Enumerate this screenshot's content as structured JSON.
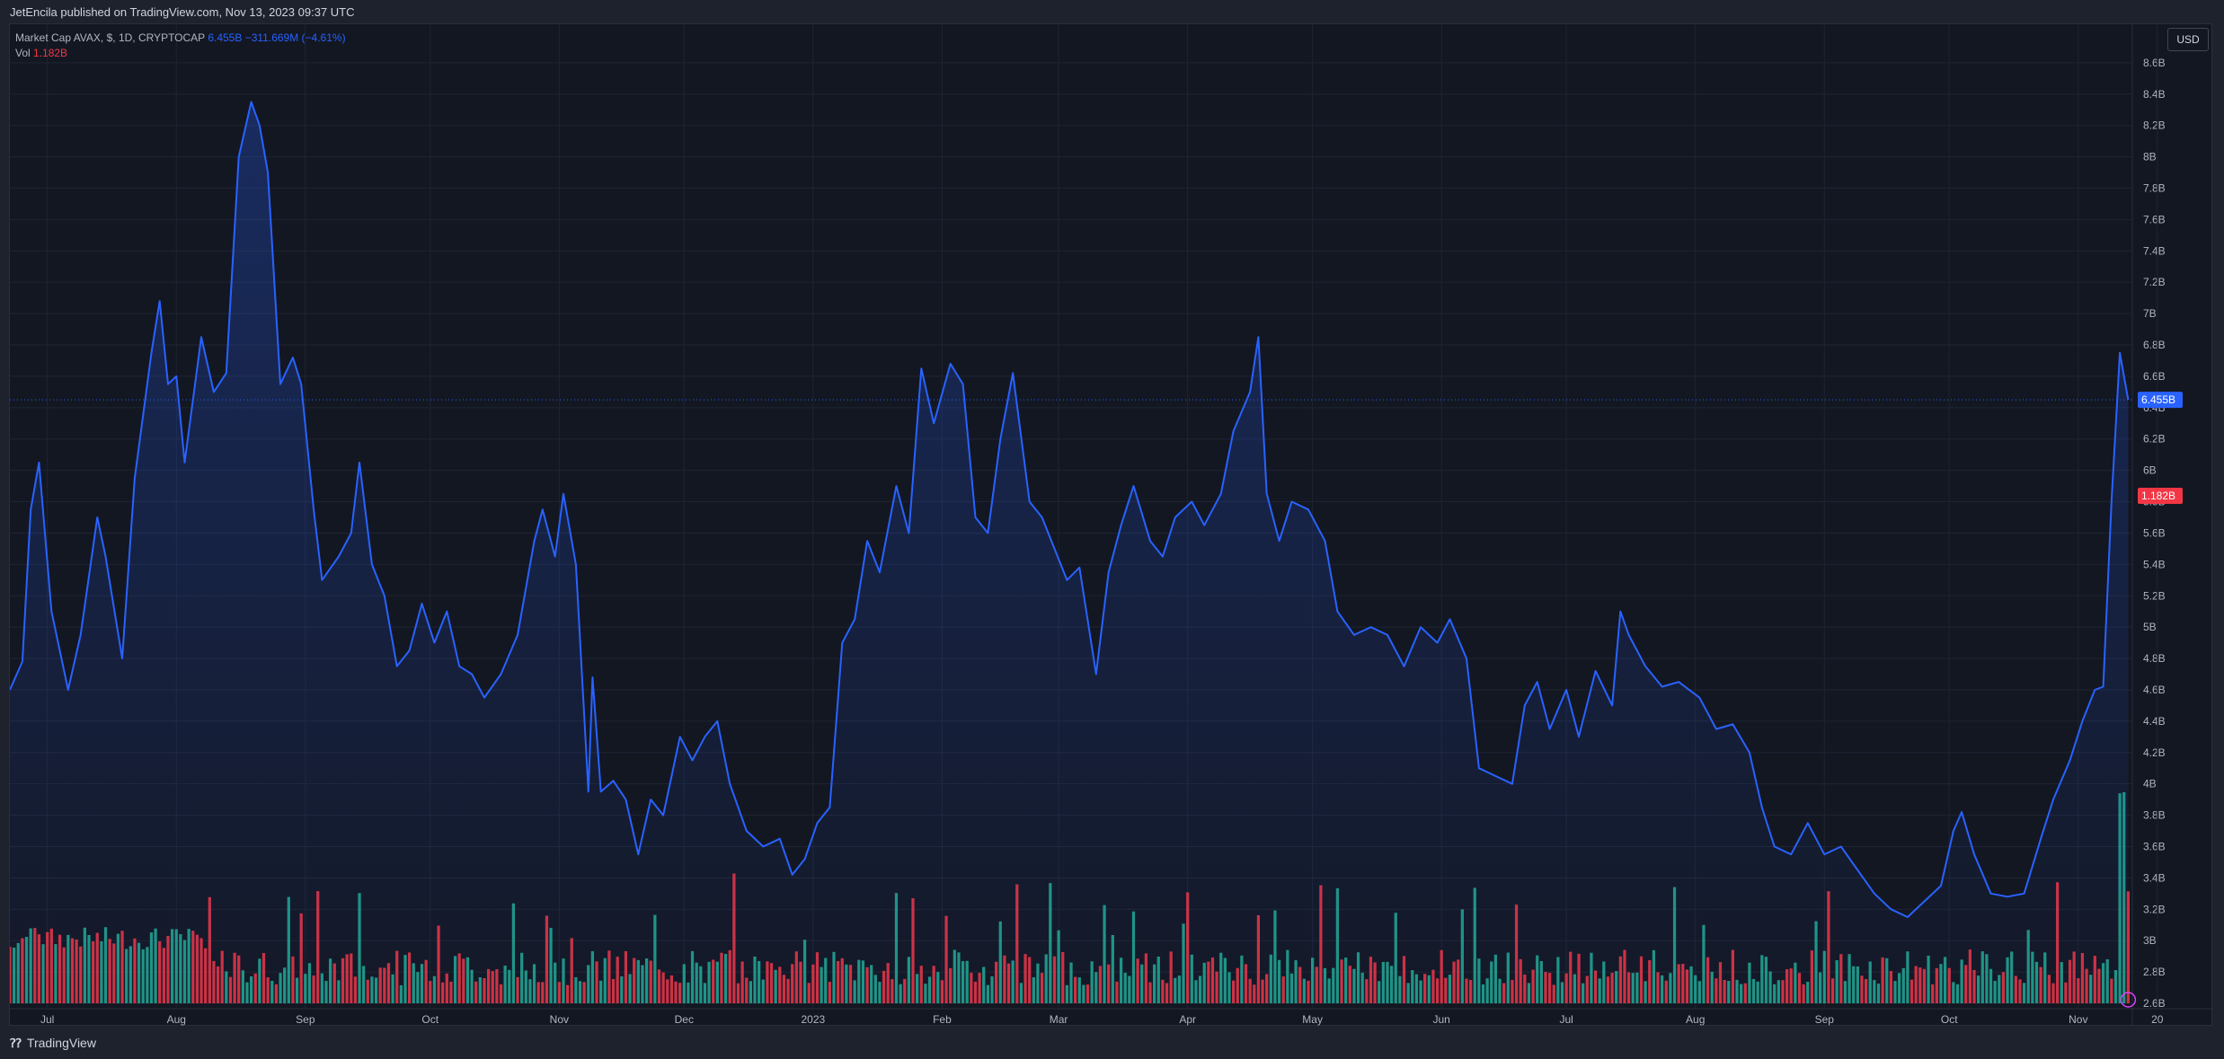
{
  "header": {
    "published": "JetEncila published on TradingView.com, Nov 13, 2023 09:37 UTC"
  },
  "legend": {
    "symbol": "Market Cap AVAX, $, 1D, CRYPTOCAP",
    "value": "6.455B",
    "change": "−311.669M (−4.61%)",
    "vol_label": "Vol",
    "vol_value": "1.182B"
  },
  "toolbar": {
    "currency": "USD"
  },
  "footer": {
    "brand": "TradingView",
    "brand_icon": "tradingview-logo-icon"
  },
  "colors": {
    "line": "#2962ff",
    "up": "#22ab94",
    "down": "#f23645",
    "background": "#131722",
    "grid": "#1f2433"
  },
  "chart_data": {
    "type": "area",
    "title": "Market Cap AVAX, $, 1D, CRYPTOCAP",
    "x_ticks": [
      "Jul",
      "Aug",
      "Sep",
      "Oct",
      "Nov",
      "Dec",
      "2023",
      "Feb",
      "Mar",
      "Apr",
      "May",
      "Jun",
      "Jul",
      "Aug",
      "Sep",
      "Oct",
      "Nov",
      "20"
    ],
    "y_ticks": [
      "2.6B",
      "2.8B",
      "3B",
      "3.2B",
      "3.4B",
      "3.6B",
      "3.8B",
      "4B",
      "4.2B",
      "4.4B",
      "4.6B",
      "4.8B",
      "5B",
      "5.2B",
      "5.4B",
      "5.6B",
      "5.8B",
      "6B",
      "6.2B",
      "6.4B",
      "6.6B",
      "6.8B",
      "7B",
      "7.2B",
      "7.4B",
      "7.6B",
      "7.8B",
      "8B",
      "8.2B",
      "8.4B",
      "8.6B"
    ],
    "ylim": [
      2.6,
      8.8
    ],
    "unit": "B USD",
    "x_range": [
      "2022-06-22",
      "2023-11-14"
    ],
    "series": [
      {
        "label": "Market Cap",
        "points": [
          [
            "2022-06-22",
            4.6
          ],
          [
            "2022-06-25",
            4.78
          ],
          [
            "2022-06-27",
            5.75
          ],
          [
            "2022-06-29",
            6.05
          ],
          [
            "2022-07-02",
            5.1
          ],
          [
            "2022-07-06",
            4.6
          ],
          [
            "2022-07-09",
            4.95
          ],
          [
            "2022-07-13",
            5.7
          ],
          [
            "2022-07-15",
            5.45
          ],
          [
            "2022-07-19",
            4.8
          ],
          [
            "2022-07-22",
            5.95
          ],
          [
            "2022-07-26",
            6.75
          ],
          [
            "2022-07-28",
            7.08
          ],
          [
            "2022-07-30",
            6.55
          ],
          [
            "2022-08-01",
            6.6
          ],
          [
            "2022-08-03",
            6.05
          ],
          [
            "2022-08-07",
            6.85
          ],
          [
            "2022-08-10",
            6.5
          ],
          [
            "2022-08-13",
            6.62
          ],
          [
            "2022-08-16",
            8.0
          ],
          [
            "2022-08-19",
            8.35
          ],
          [
            "2022-08-21",
            8.2
          ],
          [
            "2022-08-23",
            7.9
          ],
          [
            "2022-08-26",
            6.55
          ],
          [
            "2022-08-29",
            6.72
          ],
          [
            "2022-08-31",
            6.55
          ],
          [
            "2022-09-03",
            5.75
          ],
          [
            "2022-09-05",
            5.3
          ],
          [
            "2022-09-09",
            5.45
          ],
          [
            "2022-09-12",
            5.6
          ],
          [
            "2022-09-14",
            6.05
          ],
          [
            "2022-09-17",
            5.4
          ],
          [
            "2022-09-20",
            5.2
          ],
          [
            "2022-09-23",
            4.75
          ],
          [
            "2022-09-26",
            4.85
          ],
          [
            "2022-09-29",
            5.15
          ],
          [
            "2022-10-02",
            4.9
          ],
          [
            "2022-10-05",
            5.1
          ],
          [
            "2022-10-08",
            4.75
          ],
          [
            "2022-10-11",
            4.7
          ],
          [
            "2022-10-14",
            4.55
          ],
          [
            "2022-10-18",
            4.7
          ],
          [
            "2022-10-22",
            4.95
          ],
          [
            "2022-10-26",
            5.55
          ],
          [
            "2022-10-28",
            5.75
          ],
          [
            "2022-10-31",
            5.45
          ],
          [
            "2022-11-02",
            5.85
          ],
          [
            "2022-11-05",
            5.4
          ],
          [
            "2022-11-08",
            3.95
          ],
          [
            "2022-11-09",
            4.68
          ],
          [
            "2022-11-11",
            3.95
          ],
          [
            "2022-11-14",
            4.02
          ],
          [
            "2022-11-17",
            3.9
          ],
          [
            "2022-11-20",
            3.55
          ],
          [
            "2022-11-23",
            3.9
          ],
          [
            "2022-11-26",
            3.8
          ],
          [
            "2022-11-30",
            4.3
          ],
          [
            "2022-12-03",
            4.15
          ],
          [
            "2022-12-06",
            4.3
          ],
          [
            "2022-12-09",
            4.4
          ],
          [
            "2022-12-12",
            4.0
          ],
          [
            "2022-12-16",
            3.7
          ],
          [
            "2022-12-20",
            3.6
          ],
          [
            "2022-12-24",
            3.65
          ],
          [
            "2022-12-27",
            3.42
          ],
          [
            "2022-12-30",
            3.52
          ],
          [
            "2023-01-02",
            3.75
          ],
          [
            "2023-01-05",
            3.85
          ],
          [
            "2023-01-08",
            4.9
          ],
          [
            "2023-01-11",
            5.05
          ],
          [
            "2023-01-14",
            5.55
          ],
          [
            "2023-01-17",
            5.35
          ],
          [
            "2023-01-21",
            5.9
          ],
          [
            "2023-01-24",
            5.6
          ],
          [
            "2023-01-27",
            6.65
          ],
          [
            "2023-01-30",
            6.3
          ],
          [
            "2023-02-03",
            6.68
          ],
          [
            "2023-02-06",
            6.55
          ],
          [
            "2023-02-09",
            5.7
          ],
          [
            "2023-02-12",
            5.6
          ],
          [
            "2023-02-15",
            6.2
          ],
          [
            "2023-02-18",
            6.62
          ],
          [
            "2023-02-22",
            5.8
          ],
          [
            "2023-02-25",
            5.7
          ],
          [
            "2023-02-28",
            5.5
          ],
          [
            "2023-03-03",
            5.3
          ],
          [
            "2023-03-06",
            5.38
          ],
          [
            "2023-03-10",
            4.7
          ],
          [
            "2023-03-13",
            5.35
          ],
          [
            "2023-03-16",
            5.65
          ],
          [
            "2023-03-19",
            5.9
          ],
          [
            "2023-03-23",
            5.55
          ],
          [
            "2023-03-26",
            5.45
          ],
          [
            "2023-03-29",
            5.7
          ],
          [
            "2023-04-02",
            5.8
          ],
          [
            "2023-04-05",
            5.65
          ],
          [
            "2023-04-09",
            5.85
          ],
          [
            "2023-04-12",
            6.25
          ],
          [
            "2023-04-16",
            6.5
          ],
          [
            "2023-04-18",
            6.85
          ],
          [
            "2023-04-20",
            5.85
          ],
          [
            "2023-04-23",
            5.55
          ],
          [
            "2023-04-26",
            5.8
          ],
          [
            "2023-04-30",
            5.75
          ],
          [
            "2023-05-04",
            5.55
          ],
          [
            "2023-05-07",
            5.1
          ],
          [
            "2023-05-11",
            4.95
          ],
          [
            "2023-05-15",
            5.0
          ],
          [
            "2023-05-19",
            4.95
          ],
          [
            "2023-05-23",
            4.75
          ],
          [
            "2023-05-27",
            5.0
          ],
          [
            "2023-05-31",
            4.9
          ],
          [
            "2023-06-03",
            5.05
          ],
          [
            "2023-06-07",
            4.8
          ],
          [
            "2023-06-10",
            4.1
          ],
          [
            "2023-06-14",
            4.05
          ],
          [
            "2023-06-18",
            4.0
          ],
          [
            "2023-06-21",
            4.5
          ],
          [
            "2023-06-24",
            4.65
          ],
          [
            "2023-06-27",
            4.35
          ],
          [
            "2023-07-01",
            4.6
          ],
          [
            "2023-07-04",
            4.3
          ],
          [
            "2023-07-08",
            4.72
          ],
          [
            "2023-07-12",
            4.5
          ],
          [
            "2023-07-14",
            5.1
          ],
          [
            "2023-07-16",
            4.95
          ],
          [
            "2023-07-20",
            4.75
          ],
          [
            "2023-07-24",
            4.62
          ],
          [
            "2023-07-28",
            4.65
          ],
          [
            "2023-08-02",
            4.55
          ],
          [
            "2023-08-06",
            4.35
          ],
          [
            "2023-08-10",
            4.38
          ],
          [
            "2023-08-14",
            4.2
          ],
          [
            "2023-08-17",
            3.85
          ],
          [
            "2023-08-20",
            3.6
          ],
          [
            "2023-08-24",
            3.55
          ],
          [
            "2023-08-28",
            3.75
          ],
          [
            "2023-09-01",
            3.55
          ],
          [
            "2023-09-05",
            3.6
          ],
          [
            "2023-09-09",
            3.45
          ],
          [
            "2023-09-13",
            3.3
          ],
          [
            "2023-09-17",
            3.2
          ],
          [
            "2023-09-21",
            3.15
          ],
          [
            "2023-09-25",
            3.25
          ],
          [
            "2023-09-29",
            3.35
          ],
          [
            "2023-10-02",
            3.7
          ],
          [
            "2023-10-04",
            3.82
          ],
          [
            "2023-10-07",
            3.55
          ],
          [
            "2023-10-11",
            3.3
          ],
          [
            "2023-10-15",
            3.28
          ],
          [
            "2023-10-19",
            3.3
          ],
          [
            "2023-10-23",
            3.65
          ],
          [
            "2023-10-26",
            3.9
          ],
          [
            "2023-10-30",
            4.15
          ],
          [
            "2023-11-02",
            4.4
          ],
          [
            "2023-11-05",
            4.6
          ],
          [
            "2023-11-07",
            4.62
          ],
          [
            "2023-11-09",
            5.8
          ],
          [
            "2023-11-11",
            6.75
          ],
          [
            "2023-11-12",
            6.6
          ],
          [
            "2023-11-13",
            6.45
          ]
        ]
      }
    ],
    "volume_scale": {
      "label": "Vol",
      "last": "1.182B",
      "last_color": "down"
    },
    "last_value_label": "6.455B"
  }
}
